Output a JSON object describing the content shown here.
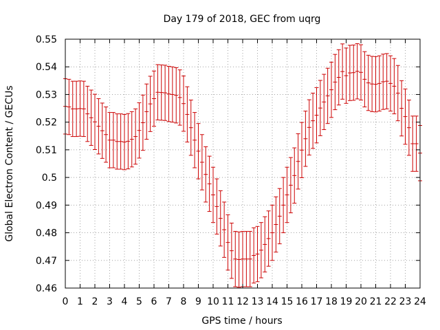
{
  "chart_data": {
    "type": "line",
    "title": "Day 179 of 2018, GEC from uqrg",
    "xlabel": "GPS time / hours",
    "ylabel": "Global Electron Content / GECUs",
    "xlim": [
      0,
      24
    ],
    "ylim": [
      0.46,
      0.55
    ],
    "xticks": [
      "0",
      "1",
      "2",
      "3",
      "4",
      "5",
      "6",
      "7",
      "8",
      "9",
      "10",
      "11",
      "12",
      "13",
      "14",
      "15",
      "16",
      "17",
      "18",
      "19",
      "20",
      "21",
      "22",
      "23",
      "24"
    ],
    "yticks": [
      "0.46",
      "0.47",
      "0.48",
      "0.49",
      "0.5",
      "0.51",
      "0.52",
      "0.53",
      "0.54",
      "0.55"
    ],
    "grid": true,
    "series_color": "#cc0000",
    "errorbar": 0.01,
    "series": [
      {
        "x": [
          0,
          0.25,
          0.5,
          0.75,
          1,
          1.25,
          1.5,
          1.75,
          2,
          2.25,
          2.5,
          2.75,
          3,
          3.25,
          3.5,
          3.75,
          4,
          4.25,
          4.5,
          4.75,
          5,
          5.25,
          5.5,
          5.75,
          6,
          6.25,
          6.5,
          6.75,
          7,
          7.25,
          7.5,
          7.75,
          8,
          8.25,
          8.5,
          8.75,
          9,
          9.25,
          9.5,
          9.75,
          10,
          10.25,
          10.5,
          10.75,
          11,
          11.25,
          11.5,
          11.75,
          12,
          12.25,
          12.5,
          12.75,
          13,
          13.25,
          13.5,
          13.75,
          14,
          14.25,
          14.5,
          14.75,
          15,
          15.25,
          15.5,
          15.75,
          16,
          16.25,
          16.5,
          16.75,
          17,
          17.25,
          17.5,
          17.75,
          18,
          18.25,
          18.5,
          18.75,
          19,
          19.25,
          19.5,
          19.75,
          20,
          20.25,
          20.5,
          20.75,
          21,
          21.25,
          21.5,
          21.75,
          22,
          22.25,
          22.5,
          22.75,
          23,
          23.25,
          23.5,
          23.75,
          24
        ],
        "y": [
          0.5257,
          0.5255,
          0.5248,
          0.5248,
          0.5249,
          0.5248,
          0.523,
          0.5216,
          0.5201,
          0.5185,
          0.5169,
          0.5155,
          0.5135,
          0.5135,
          0.513,
          0.513,
          0.5128,
          0.5131,
          0.5138,
          0.5148,
          0.517,
          0.5198,
          0.5238,
          0.5266,
          0.5285,
          0.5308,
          0.5307,
          0.5306,
          0.5302,
          0.53,
          0.5297,
          0.5289,
          0.5267,
          0.5228,
          0.518,
          0.5135,
          0.5095,
          0.5055,
          0.5011,
          0.4977,
          0.4937,
          0.4895,
          0.4852,
          0.4811,
          0.4765,
          0.4735,
          0.4705,
          0.4703,
          0.4705,
          0.4705,
          0.4705,
          0.4718,
          0.4723,
          0.4737,
          0.4758,
          0.4779,
          0.48,
          0.483,
          0.486,
          0.49,
          0.4937,
          0.4972,
          0.5007,
          0.5058,
          0.5099,
          0.514,
          0.5181,
          0.5205,
          0.5225,
          0.5251,
          0.5273,
          0.5295,
          0.5317,
          0.5345,
          0.5362,
          0.5383,
          0.5368,
          0.5378,
          0.5379,
          0.5384,
          0.538,
          0.5355,
          0.5342,
          0.5338,
          0.5337,
          0.534,
          0.5346,
          0.5348,
          0.534,
          0.533,
          0.5305,
          0.525,
          0.522,
          0.518,
          0.5122,
          0.5122,
          0.5088
        ]
      }
    ]
  }
}
